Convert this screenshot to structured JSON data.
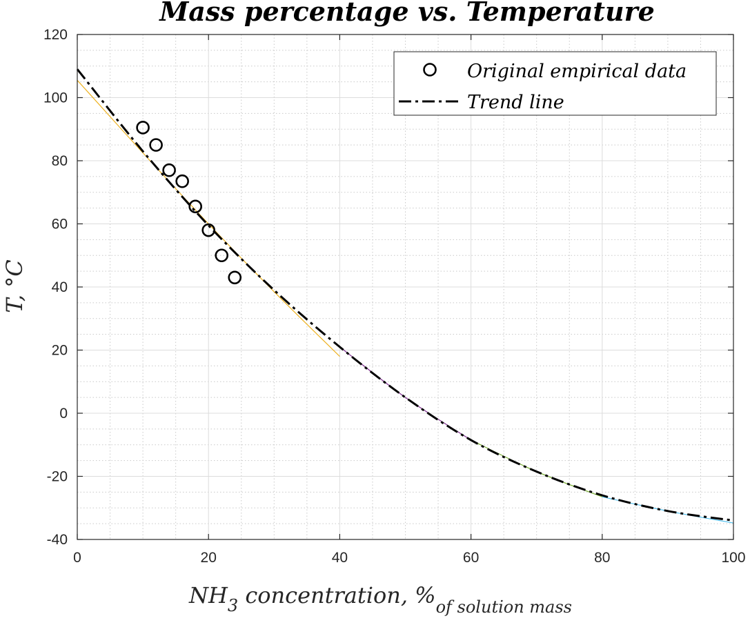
{
  "chart_data": {
    "type": "line",
    "title": "Mass percentage vs. Temperature",
    "xlabel": {
      "main": "NH",
      "sub_3": "3",
      "mid": " concentration, %",
      "sub_tail": "of solution mass"
    },
    "ylabel": "T, °C",
    "xlim": [
      0,
      100
    ],
    "ylim": [
      -40,
      120
    ],
    "x_ticks": [
      0,
      20,
      40,
      60,
      80,
      100
    ],
    "y_ticks": [
      -40,
      -20,
      0,
      20,
      40,
      60,
      80,
      100,
      120
    ],
    "grid": true,
    "minor_grid": true,
    "legend_position": "top-right",
    "series": [
      {
        "name": "Original empirical data",
        "style": "markers-circle",
        "color": "#000000",
        "x": [
          10,
          12,
          14,
          16,
          18,
          20,
          22,
          24
        ],
        "y": [
          90.5,
          85,
          77,
          73.5,
          65.5,
          58,
          50,
          43
        ]
      },
      {
        "name": "Trend line",
        "style": "dash-dot",
        "color": "#000000",
        "x": [
          0,
          10,
          20,
          30,
          40,
          50,
          60,
          70,
          80,
          90,
          100
        ],
        "y": [
          109,
          83,
          59.5,
          39,
          21,
          5,
          -8.5,
          -18.5,
          -26,
          -31,
          -34
        ]
      }
    ],
    "segment_fits": [
      {
        "color": "#edb120",
        "x": [
          0,
          10,
          20,
          30,
          40
        ],
        "y": [
          105.5,
          82.5,
          60,
          38.5,
          18
        ]
      },
      {
        "color": "#7e2f8e",
        "x": [
          40,
          50,
          60
        ],
        "y": [
          21,
          5,
          -8.5
        ]
      },
      {
        "color": "#77ac30",
        "x": [
          60,
          70,
          80
        ],
        "y": [
          -8.5,
          -18.5,
          -26.5
        ]
      },
      {
        "color": "#4dbeee",
        "x": [
          80,
          90,
          100
        ],
        "y": [
          -26.5,
          -31,
          -34.8
        ]
      }
    ]
  }
}
